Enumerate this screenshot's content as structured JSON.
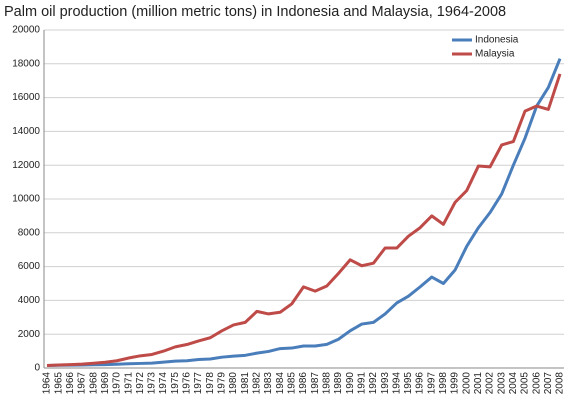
{
  "chart_data": {
    "type": "line",
    "title": "Palm oil production (million metric tons) in Indonesia and Malaysia, 1964-2008",
    "categories": [
      "1964",
      "1965",
      "1966",
      "1967",
      "1968",
      "1969",
      "1970",
      "1971",
      "1972",
      "1973",
      "1974",
      "1975",
      "1976",
      "1977",
      "1978",
      "1979",
      "1980",
      "1981",
      "1982",
      "1983",
      "1984",
      "1985",
      "1986",
      "1987",
      "1988",
      "1989",
      "1990",
      "1991",
      "1992",
      "1993",
      "1994",
      "1995",
      "1996",
      "1997",
      "1998",
      "1999",
      "2000",
      "2001",
      "2002",
      "2003",
      "2004",
      "2005",
      "2006",
      "2007",
      "2008"
    ],
    "series": [
      {
        "name": "Indonesia",
        "color": "#4a7ebb",
        "values": [
          150,
          160,
          170,
          180,
          190,
          200,
          220,
          250,
          270,
          290,
          350,
          410,
          430,
          500,
          530,
          640,
          700,
          750,
          880,
          980,
          1150,
          1180,
          1300,
          1300,
          1400,
          1700,
          2200,
          2600,
          2700,
          3200,
          3850,
          4250,
          4800,
          5380,
          5000,
          5800,
          7200,
          8300,
          9200,
          10300,
          12000,
          13600,
          15500,
          16600,
          18300
        ]
      },
      {
        "name": "Malaysia",
        "color": "#be4b48",
        "values": [
          150,
          180,
          200,
          230,
          280,
          340,
          430,
          590,
          720,
          800,
          1000,
          1250,
          1390,
          1600,
          1790,
          2200,
          2550,
          2700,
          3350,
          3200,
          3300,
          3800,
          4800,
          4550,
          4850,
          5600,
          6400,
          6050,
          6200,
          7100,
          7100,
          7800,
          8300,
          9000,
          8500,
          9800,
          10500,
          11950,
          11900,
          13200,
          13400,
          15200,
          15500,
          15300,
          17400
        ]
      }
    ],
    "ylim": [
      0,
      20000
    ],
    "yticks": [
      0,
      2000,
      4000,
      6000,
      8000,
      10000,
      12000,
      14000,
      16000,
      18000,
      20000
    ],
    "grid": true,
    "legend": "top-right"
  }
}
